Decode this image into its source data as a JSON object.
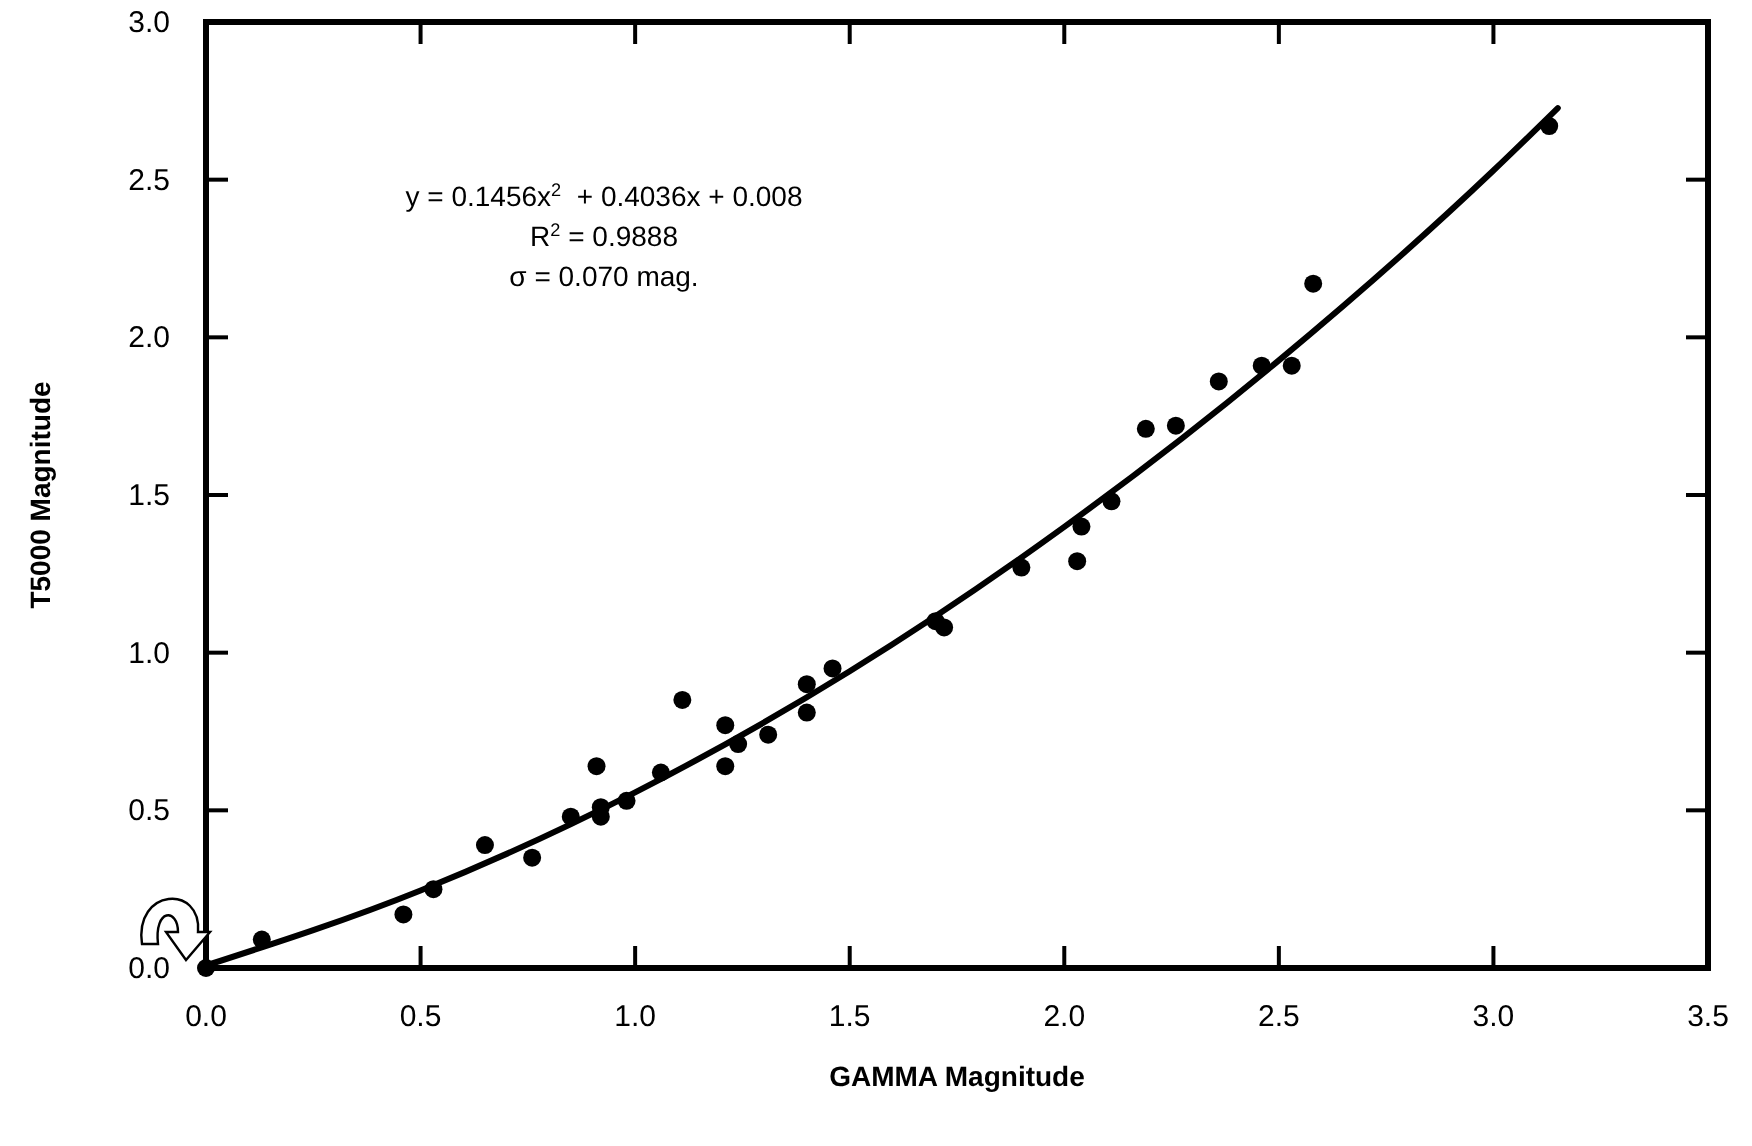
{
  "chart_data": {
    "type": "scatter",
    "xlabel": "GAMMA  Magnitude",
    "ylabel": "T5000  Magnitude",
    "xlim": [
      0,
      3.5
    ],
    "ylim": [
      0,
      3
    ],
    "xticks": [
      {
        "value": 0,
        "label": "0.0"
      },
      {
        "value": 0.5,
        "label": "0.5"
      },
      {
        "value": 1,
        "label": "1.0"
      },
      {
        "value": 1.5,
        "label": "1.5"
      },
      {
        "value": 2,
        "label": "2.0"
      },
      {
        "value": 2.5,
        "label": "2.5"
      },
      {
        "value": 3,
        "label": "3.0"
      },
      {
        "value": 3.5,
        "label": "3.5"
      }
    ],
    "yticks": [
      {
        "value": 0,
        "label": "0.0"
      },
      {
        "value": 0.5,
        "label": "0.5"
      },
      {
        "value": 1,
        "label": "1.0"
      },
      {
        "value": 1.5,
        "label": "1.5"
      },
      {
        "value": 2,
        "label": "2.0"
      },
      {
        "value": 2.5,
        "label": "2.5"
      },
      {
        "value": 3,
        "label": "3.0"
      }
    ],
    "grid": false,
    "marker": "circle",
    "series": [
      {
        "color": "#000000",
        "x": [
          0,
          0.13,
          0.46,
          0.53,
          0.65,
          0.76,
          0.85,
          0.91,
          0.92,
          0.92,
          0.98,
          1.06,
          1.11,
          1.21,
          1.21,
          1.24,
          1.31,
          1.4,
          1.4,
          1.46,
          1.7,
          1.72,
          1.9,
          2.03,
          2.04,
          2.11,
          2.19,
          2.26,
          2.36,
          2.46,
          2.53,
          2.58,
          3.13
        ],
        "values": [
          0,
          0.09,
          0.17,
          0.25,
          0.39,
          0.35,
          0.48,
          0.64,
          0.51,
          0.48,
          0.53,
          0.62,
          0.85,
          0.77,
          0.64,
          0.71,
          0.74,
          0.9,
          0.81,
          0.95,
          1.1,
          1.08,
          1.27,
          1.29,
          1.4,
          1.48,
          1.71,
          1.72,
          1.86,
          1.91,
          1.91,
          2.17,
          2.67
        ]
      },
      {
        "type": "line",
        "color": "#000000",
        "marker": "none",
        "line_style": "solid",
        "x": [
          0,
          0.5,
          1,
          1.5,
          2,
          2.5,
          3,
          3.15
        ],
        "values": [
          0.008,
          0.246,
          0.557,
          0.941,
          1.399,
          1.927,
          2.529,
          2.727
        ]
      }
    ],
    "annotations": [
      "y = 0.1456x$^{2}$  + 0.4036x + 0.008",
      "R$^{2}$ = 0.9888",
      "σ = 0.070 mag."
    ]
  }
}
